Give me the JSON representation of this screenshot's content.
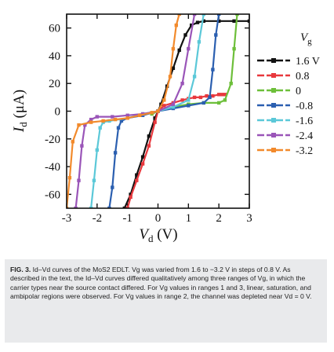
{
  "chart_data": {
    "type": "line",
    "title": "",
    "xlabel_main": "V",
    "xlabel_sub": "d",
    "xlabel_unit": " (V)",
    "ylabel_main": "I",
    "ylabel_sub": "d",
    "ylabel_unit": " (μA)",
    "xlim": [
      -3,
      3
    ],
    "ylim": [
      -70,
      70
    ],
    "xticks": [
      -3,
      -2,
      -1,
      0,
      1,
      2,
      3
    ],
    "yticks": [
      60,
      40,
      20,
      0,
      -20,
      -40,
      -60
    ],
    "xtick_labels": [
      "-3",
      "-2",
      "-1",
      "0",
      "1",
      "2",
      "3"
    ],
    "ytick_labels": [
      "60",
      "40",
      "20",
      "0",
      "-20",
      "-40",
      "-60"
    ],
    "grid": false,
    "legend_title_main": "V",
    "legend_title_sub": "g",
    "legend_position": "right",
    "series": [
      {
        "name": "1.6 V",
        "color": "#111111",
        "x": [
          -1.1,
          -0.9,
          -0.7,
          -0.5,
          -0.3,
          -0.1,
          0.0,
          0.1,
          0.3,
          0.5,
          0.7,
          0.9,
          1.1,
          1.3,
          1.5,
          2.0,
          2.5,
          3.0
        ],
        "y": [
          -70,
          -60,
          -46,
          -33,
          -18,
          -5,
          0,
          5,
          18,
          31,
          44,
          55,
          62,
          64,
          65,
          65,
          65,
          65
        ]
      },
      {
        "name": "0.8",
        "color": "#e8383d",
        "x": [
          -1.0,
          -0.9,
          -0.7,
          -0.5,
          -0.3,
          -0.1,
          0.0,
          0.2,
          0.5,
          0.8,
          1.0,
          1.2,
          1.4,
          1.6,
          1.8,
          2.0,
          2.1,
          2.2
        ],
        "y": [
          -70,
          -62,
          -50,
          -38,
          -25,
          -8,
          0,
          4,
          6,
          8,
          9,
          10,
          10,
          11,
          11,
          12,
          12,
          12
        ]
      },
      {
        "name": "0",
        "color": "#6dbf3a",
        "x": [
          -0.2,
          0.0,
          0.5,
          1.0,
          1.5,
          2.0,
          2.2,
          2.4,
          2.5,
          2.6
        ],
        "y": [
          -2,
          0,
          3,
          5,
          6,
          6,
          8,
          20,
          45,
          70
        ]
      },
      {
        "name": "-0.8",
        "color": "#2b5fb0",
        "x": [
          -1.6,
          -1.5,
          -1.4,
          -1.3,
          -1.2,
          -1.0,
          -0.5,
          0.0,
          0.5,
          1.0,
          1.5,
          1.7,
          1.8,
          1.9,
          2.0
        ],
        "y": [
          -70,
          -55,
          -30,
          -12,
          -7,
          -5,
          -3,
          0,
          2,
          4,
          6,
          10,
          30,
          55,
          70
        ]
      },
      {
        "name": "-1.6",
        "color": "#5bc8d8",
        "x": [
          -2.2,
          -2.1,
          -2.0,
          -1.9,
          -1.8,
          -1.6,
          -1.0,
          -0.5,
          0.0,
          0.5,
          1.0,
          1.2,
          1.35,
          1.5
        ],
        "y": [
          -70,
          -50,
          -28,
          -12,
          -8,
          -7,
          -5,
          -2,
          0,
          3,
          8,
          25,
          50,
          70
        ]
      },
      {
        "name": "-2.4",
        "color": "#9a55b8",
        "x": [
          -2.7,
          -2.6,
          -2.5,
          -2.4,
          -2.2,
          -2.0,
          -1.5,
          -1.0,
          -0.5,
          0.0,
          0.5,
          0.8,
          1.0,
          1.2
        ],
        "y": [
          -70,
          -50,
          -25,
          -10,
          -6,
          -4,
          -4,
          -3,
          -2,
          0,
          5,
          20,
          45,
          70
        ]
      },
      {
        "name": "-3.2",
        "color": "#f28a2c",
        "x": [
          -3.0,
          -2.9,
          -2.8,
          -2.6,
          -2.2,
          -1.8,
          -1.4,
          -1.0,
          -0.6,
          -0.2,
          0.0,
          0.2,
          0.4,
          0.5,
          0.6,
          0.7
        ],
        "y": [
          -70,
          -48,
          -22,
          -10,
          -8,
          -7,
          -6,
          -5,
          -3,
          -1,
          0,
          8,
          25,
          45,
          62,
          70
        ]
      }
    ]
  },
  "caption": {
    "fig_label": "FIG. 3.",
    "text": " Id–Vd curves of the MoS2 EDLT. Vg was varied from 1.6 to −3.2 V in steps of 0.8 V. As described in the text, the Id–Vd curves differed qualitatively among three ranges of Vg, in which the carrier types near the source contact differed. For Vg values in ranges 1 and 3, linear, saturation, and ambipolar regions were observed. For Vg values in range 2, the channel was depleted near Vd = 0 V."
  }
}
